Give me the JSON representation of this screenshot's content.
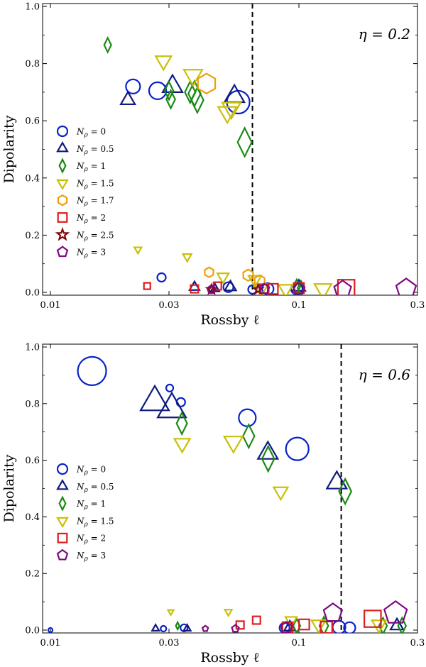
{
  "chart_data": [
    {
      "type": "scatter",
      "title": "",
      "annotation": "η = 0.2",
      "xlabel": "Rossby ℓ",
      "ylabel": "Dipolarity",
      "xscale": "log",
      "xlim": [
        0.0093,
        0.3
      ],
      "ylim": [
        -0.01,
        1.01
      ],
      "xticks": [
        {
          "value": 0.01,
          "label": "0.01"
        },
        {
          "value": 0.03,
          "label": "0.03"
        },
        {
          "value": 0.1,
          "label": "0.1"
        },
        {
          "value": 0.3,
          "label": "0.3"
        }
      ],
      "yticks": [
        {
          "value": 0,
          "label": "0.0"
        },
        {
          "value": 0.2,
          "label": "0.2"
        },
        {
          "value": 0.4,
          "label": "0.4"
        },
        {
          "value": 0.6,
          "label": "0.6"
        },
        {
          "value": 0.8,
          "label": "0.8"
        },
        {
          "value": 1.0,
          "label": "1.0"
        }
      ],
      "grid": false,
      "legend_position": "center-left",
      "threshold_x": 0.065,
      "series": [
        {
          "name": "N_ρ = 0",
          "legend_main": "N",
          "legend_sub": "ρ",
          "legend_rest": " = 0",
          "marker": "circle",
          "color": "#0a22c8",
          "points": [
            [
              0.0215,
              0.72,
              1.0
            ],
            [
              0.027,
              0.705,
              1.2
            ],
            [
              0.028,
              0.052,
              0.6
            ],
            [
              0.052,
              0.018,
              0.7
            ],
            [
              0.057,
              0.665,
              1.6
            ],
            [
              0.065,
              0.01,
              0.6
            ],
            [
              0.075,
              0.012,
              0.8
            ],
            [
              0.098,
              0.012,
              0.8
            ]
          ]
        },
        {
          "name": "N_ρ = 0.5",
          "legend_main": "N",
          "legend_sub": "ρ",
          "legend_rest": " = 0.5",
          "marker": "triangle",
          "color": "#101a80",
          "points": [
            [
              0.0205,
              0.672,
              1.0
            ],
            [
              0.031,
              0.72,
              1.4
            ],
            [
              0.038,
              0.018,
              0.7
            ],
            [
              0.046,
              0.012,
              0.6
            ],
            [
              0.053,
              0.018,
              0.8
            ],
            [
              0.055,
              0.685,
              1.4
            ],
            [
              0.1,
              0.018,
              0.9
            ]
          ]
        },
        {
          "name": "N_ρ = 1",
          "legend_main": "N",
          "legend_sub": "ρ",
          "legend_rest": " = 1",
          "marker": "diamond",
          "color": "#1a8a14",
          "points": [
            [
              0.017,
              0.865,
              0.8
            ],
            [
              0.03,
              0.705,
              1.0
            ],
            [
              0.0305,
              0.675,
              1.0
            ],
            [
              0.0365,
              0.7,
              1.2
            ],
            [
              0.038,
              0.695,
              1.4
            ],
            [
              0.039,
              0.672,
              1.4
            ],
            [
              0.0605,
              0.525,
              1.6
            ],
            [
              0.098,
              0.02,
              0.8
            ],
            [
              0.102,
              0.015,
              0.8
            ]
          ]
        },
        {
          "name": "N_ρ = 1.5",
          "legend_main": "N",
          "legend_sub": "ρ",
          "legend_rest": " = 1.5",
          "marker": "triangle-down",
          "color": "#c8c00a",
          "points": [
            [
              0.0225,
              0.15,
              0.5
            ],
            [
              0.0285,
              0.81,
              1.1
            ],
            [
              0.0355,
              0.125,
              0.6
            ],
            [
              0.0375,
              0.76,
              1.3
            ],
            [
              0.0495,
              0.055,
              0.8
            ],
            [
              0.0515,
              0.63,
              1.3
            ],
            [
              0.0535,
              0.645,
              1.3
            ],
            [
              0.0665,
              0.045,
              0.9
            ],
            [
              0.0705,
              0.015,
              1.0
            ],
            [
              0.0885,
              0.012,
              1.0
            ],
            [
              0.125,
              0.012,
              1.2
            ]
          ]
        },
        {
          "name": "N_ρ = 1.7",
          "legend_main": "N",
          "legend_sub": "ρ",
          "legend_rest": " = 1.7",
          "marker": "hexagon",
          "color": "#ef9e0a",
          "points": [
            [
              0.0425,
              0.73,
              1.4
            ],
            [
              0.0435,
              0.07,
              0.7
            ],
            [
              0.0625,
              0.06,
              0.8
            ],
            [
              0.0695,
              0.04,
              0.8
            ]
          ]
        },
        {
          "name": "N_ρ = 2",
          "legend_main": "N",
          "legend_sub": "ρ",
          "legend_rest": " = 2",
          "marker": "square",
          "color": "#dc1e1e",
          "points": [
            [
              0.0245,
              0.022,
              0.5
            ],
            [
              0.038,
              0.012,
              0.6
            ],
            [
              0.047,
              0.022,
              0.6
            ],
            [
              0.0725,
              0.012,
              0.7
            ],
            [
              0.0785,
              0.012,
              0.8
            ],
            [
              0.1,
              0.015,
              0.8
            ],
            [
              0.155,
              0.015,
              1.3
            ]
          ]
        },
        {
          "name": "N_ρ = 2.5",
          "legend_main": "N",
          "legend_sub": "ρ",
          "legend_rest": " = 2.5",
          "marker": "star",
          "color": "#820a0a",
          "points": [
            [
              0.0445,
              0.01,
              0.6
            ],
            [
              0.0685,
              0.01,
              0.6
            ]
          ]
        },
        {
          "name": "N_ρ = 3",
          "legend_main": "N",
          "legend_sub": "ρ",
          "legend_rest": " = 3",
          "marker": "pentagon",
          "color": "#800a80",
          "points": [
            [
              0.0445,
              0.01,
              0.6
            ],
            [
              0.0725,
              0.012,
              0.7
            ],
            [
              0.1,
              0.012,
              0.8
            ],
            [
              0.15,
              0.01,
              1.2
            ],
            [
              0.27,
              0.012,
              1.4
            ]
          ]
        }
      ]
    },
    {
      "type": "scatter",
      "title": "",
      "annotation": "η = 0.6",
      "xlabel": "Rossby ℓ",
      "ylabel": "Dipolarity",
      "xscale": "log",
      "xlim": [
        0.0093,
        0.3
      ],
      "ylim": [
        -0.01,
        1.01
      ],
      "xticks": [
        {
          "value": 0.01,
          "label": "0.01"
        },
        {
          "value": 0.03,
          "label": "0.03"
        },
        {
          "value": 0.1,
          "label": "0.1"
        },
        {
          "value": 0.3,
          "label": "0.3"
        }
      ],
      "yticks": [
        {
          "value": 0,
          "label": "0.0"
        },
        {
          "value": 0.2,
          "label": "0.2"
        },
        {
          "value": 0.4,
          "label": "0.4"
        },
        {
          "value": 0.6,
          "label": "0.6"
        },
        {
          "value": 0.8,
          "label": "0.8"
        },
        {
          "value": 1.0,
          "label": "1.0"
        }
      ],
      "grid": false,
      "legend_position": "center-left",
      "threshold_x": 0.148,
      "series": [
        {
          "name": "N_ρ = 0",
          "legend_main": "N",
          "legend_sub": "ρ",
          "legend_rest": " = 0",
          "marker": "circle",
          "color": "#0a22c8",
          "points": [
            [
              0.0147,
              0.915,
              2.0
            ],
            [
              0.0302,
              0.855,
              0.5
            ],
            [
              0.0335,
              0.805,
              0.6
            ],
            [
              0.062,
              0.75,
              1.2
            ],
            [
              0.0985,
              0.64,
              1.6
            ],
            [
              0.01,
              0.0,
              0.3
            ],
            [
              0.0285,
              0.005,
              0.4
            ],
            [
              0.0345,
              0.008,
              0.5
            ],
            [
              0.0875,
              0.008,
              0.7
            ],
            [
              0.145,
              0.01,
              0.9
            ],
            [
              0.16,
              0.008,
              0.8
            ]
          ]
        },
        {
          "name": "N_ρ = 0.5",
          "legend_main": "N",
          "legend_sub": "ρ",
          "legend_rest": " = 0.5",
          "marker": "triangle",
          "color": "#101a80",
          "points": [
            [
              0.0263,
              0.805,
              2.0
            ],
            [
              0.0308,
              0.78,
              2.0
            ],
            [
              0.075,
              0.625,
              1.4
            ],
            [
              0.142,
              0.52,
              1.4
            ],
            [
              0.0265,
              0.005,
              0.5
            ],
            [
              0.0355,
              0.005,
              0.5
            ],
            [
              0.092,
              0.01,
              0.8
            ],
            [
              0.248,
              0.015,
              0.9
            ]
          ]
        },
        {
          "name": "N_ρ = 1",
          "legend_main": "N",
          "legend_sub": "ρ",
          "legend_rest": " = 1",
          "marker": "diamond",
          "color": "#1a8a14",
          "points": [
            [
              0.0338,
              0.73,
              1.2
            ],
            [
              0.0628,
              0.685,
              1.3
            ],
            [
              0.0752,
              0.605,
              1.4
            ],
            [
              0.1535,
              0.49,
              1.4
            ],
            [
              0.0325,
              0.015,
              0.4
            ],
            [
              0.098,
              0.015,
              0.8
            ],
            [
              0.126,
              0.015,
              1.0
            ],
            [
              0.218,
              0.015,
              0.9
            ],
            [
              0.26,
              0.015,
              0.9
            ]
          ]
        },
        {
          "name": "N_ρ = 1.5",
          "legend_main": "N",
          "legend_sub": "ρ",
          "legend_rest": " = 1.5",
          "marker": "triangle-down",
          "color": "#c8c00a",
          "points": [
            [
              0.0339,
              0.66,
              1.1
            ],
            [
              0.0545,
              0.665,
              1.3
            ],
            [
              0.0845,
              0.49,
              1.0
            ],
            [
              0.0305,
              0.065,
              0.4
            ],
            [
              0.052,
              0.065,
              0.5
            ],
            [
              0.093,
              0.035,
              0.8
            ],
            [
              0.12,
              0.02,
              1.0
            ],
            [
              0.21,
              0.02,
              1.0
            ]
          ]
        },
        {
          "name": "N_ρ = 2",
          "legend_main": "N",
          "legend_sub": "ρ",
          "legend_rest": " = 2",
          "marker": "square",
          "color": "#dc1e1e",
          "points": [
            [
              0.058,
              0.018,
              0.6
            ],
            [
              0.0675,
              0.035,
              0.6
            ],
            [
              0.09,
              0.01,
              0.8
            ],
            [
              0.105,
              0.02,
              0.8
            ],
            [
              0.129,
              0.01,
              0.9
            ],
            [
              0.198,
              0.04,
              1.3
            ]
          ]
        },
        {
          "name": "N_ρ = 3",
          "legend_main": "N",
          "legend_sub": "ρ",
          "legend_rest": " = 3",
          "marker": "pentagon",
          "color": "#800a80",
          "points": [
            [
              0.042,
              0.005,
              0.4
            ],
            [
              0.0555,
              0.005,
              0.5
            ],
            [
              0.089,
              0.008,
              0.8
            ],
            [
              0.137,
              0.06,
              1.3
            ],
            [
              0.245,
              0.06,
              1.6
            ]
          ]
        }
      ]
    }
  ]
}
